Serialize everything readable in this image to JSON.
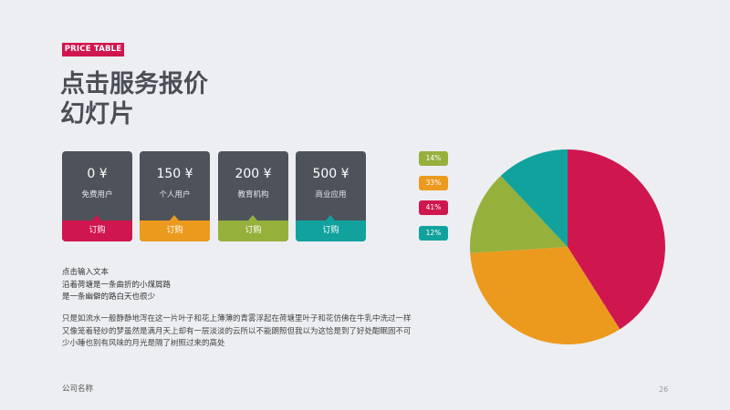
{
  "header": {
    "tag": "PRICE TABLE",
    "title_line1": "点击服务报价",
    "title_line2": "幻灯片"
  },
  "colors": {
    "card": "#4e525a",
    "red": "#d0164e",
    "orange": "#ec9a1e",
    "green": "#96b03c",
    "teal": "#12a29d"
  },
  "cards": [
    {
      "price": "0 ¥",
      "tier": "免费用户",
      "buy": "订购"
    },
    {
      "price": "150 ¥",
      "tier": "个人用户",
      "buy": "订购"
    },
    {
      "price": "200 ¥",
      "tier": "教育机构",
      "buy": "订购"
    },
    {
      "price": "500 ¥",
      "tier": "商业应用",
      "buy": "订购"
    }
  ],
  "intro": {
    "line1": "点击输入文本",
    "line2": "沿着荷塘是一条曲折的小煤屑路",
    "line3": "是一条幽僻的路白天也很少"
  },
  "body": {
    "line1": "只是如流水一般静静地泻在这一片叶子和花上薄薄的青雾浮起在荷塘里叶子和花仿佛在牛乳中洗过一样",
    "line2": "又像笼着轻纱的梦虽然是满月天上却有一层淡淡的云所以不能朗照但我以为这恰是到了好处酣眠固不可",
    "line3": "少小睡也别有风味的月光是隔了树照过来的高处"
  },
  "chart_data": {
    "type": "pie",
    "categories": [
      "14%",
      "33%",
      "41%",
      "12%"
    ],
    "values": [
      14,
      33,
      41,
      12
    ],
    "colors": [
      "#96b03c",
      "#ec9a1e",
      "#d0164e",
      "#12a29d"
    ]
  },
  "footer": {
    "company": "公司名称",
    "page": "26"
  }
}
